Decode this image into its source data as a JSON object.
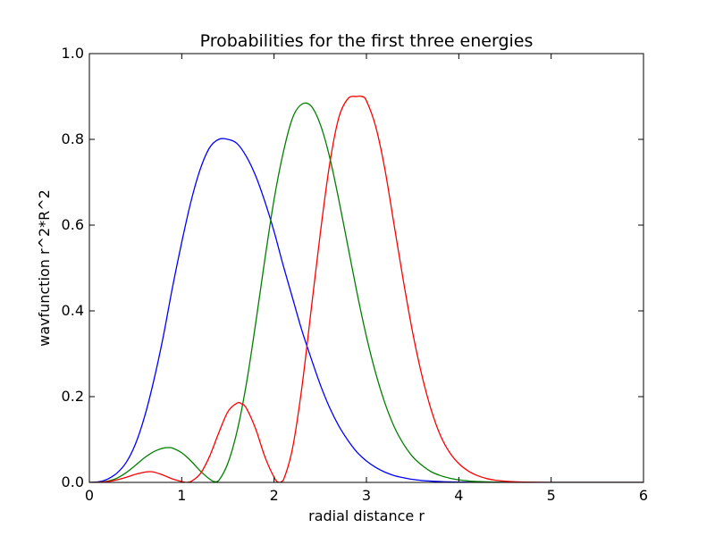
{
  "chart_data": {
    "type": "line",
    "title": "Probabilities for the first three energies",
    "xlabel": "radial distance r",
    "ylabel": "wavfunction r^2*R^2",
    "xlim": [
      0,
      6
    ],
    "ylim": [
      0,
      1.0
    ],
    "grid": false,
    "legend": "none",
    "x_ticks": [
      {
        "value": 0,
        "label": "0"
      },
      {
        "value": 1,
        "label": "1"
      },
      {
        "value": 2,
        "label": "2"
      },
      {
        "value": 3,
        "label": "3"
      },
      {
        "value": 4,
        "label": "4"
      },
      {
        "value": 5,
        "label": "5"
      },
      {
        "value": 6,
        "label": "6"
      }
    ],
    "y_ticks": [
      {
        "value": 0.0,
        "label": "0.0"
      },
      {
        "value": 0.2,
        "label": "0.2"
      },
      {
        "value": 0.4,
        "label": "0.4"
      },
      {
        "value": 0.6,
        "label": "0.6"
      },
      {
        "value": 0.8,
        "label": "0.8"
      },
      {
        "value": 1.0,
        "label": "1.0"
      }
    ],
    "series": [
      {
        "color": "#0000ff",
        "x": [
          0.0,
          0.1,
          0.2,
          0.3,
          0.4,
          0.5,
          0.6,
          0.7,
          0.8,
          0.9,
          1.0,
          1.1,
          1.2,
          1.3,
          1.4,
          1.5,
          1.6,
          1.7,
          1.8,
          1.9,
          2.0,
          2.1,
          2.2,
          2.3,
          2.4,
          2.5,
          2.6,
          2.7,
          2.8,
          2.9,
          3.0,
          3.1,
          3.2,
          3.3,
          3.4,
          3.5,
          3.6,
          3.7,
          3.8,
          3.9,
          4.0,
          4.1,
          4.2,
          4.4,
          4.6,
          4.8,
          5.0,
          5.5,
          6.0
        ],
        "y": [
          0.0,
          0.0015,
          0.008,
          0.022,
          0.047,
          0.09,
          0.155,
          0.24,
          0.34,
          0.455,
          0.56,
          0.655,
          0.73,
          0.78,
          0.8,
          0.8,
          0.79,
          0.76,
          0.715,
          0.655,
          0.585,
          0.505,
          0.43,
          0.355,
          0.29,
          0.228,
          0.175,
          0.132,
          0.098,
          0.07,
          0.05,
          0.035,
          0.024,
          0.016,
          0.011,
          0.007,
          0.0045,
          0.003,
          0.002,
          0.0012,
          0.0008,
          0.0005,
          0.0003,
          0.0001,
          0.0,
          0.0,
          0.0,
          0.0,
          0.0
        ]
      },
      {
        "color": "#008000",
        "x": [
          0.0,
          0.1,
          0.2,
          0.3,
          0.4,
          0.5,
          0.6,
          0.7,
          0.8,
          0.85,
          0.9,
          1.0,
          1.1,
          1.2,
          1.3,
          1.35,
          1.4,
          1.5,
          1.6,
          1.7,
          1.8,
          1.9,
          2.0,
          2.1,
          2.2,
          2.3,
          2.4,
          2.5,
          2.6,
          2.7,
          2.8,
          2.9,
          3.0,
          3.1,
          3.2,
          3.3,
          3.4,
          3.5,
          3.6,
          3.7,
          3.8,
          3.9,
          4.0,
          4.1,
          4.2,
          4.4,
          4.6,
          5.0,
          6.0
        ],
        "y": [
          0.0,
          0.0005,
          0.003,
          0.01,
          0.023,
          0.04,
          0.058,
          0.072,
          0.08,
          0.081,
          0.08,
          0.069,
          0.05,
          0.027,
          0.008,
          0.002,
          0.004,
          0.045,
          0.12,
          0.23,
          0.37,
          0.52,
          0.66,
          0.77,
          0.85,
          0.882,
          0.878,
          0.835,
          0.76,
          0.66,
          0.55,
          0.44,
          0.34,
          0.255,
          0.185,
          0.13,
          0.09,
          0.06,
          0.04,
          0.025,
          0.016,
          0.01,
          0.006,
          0.0035,
          0.002,
          0.0006,
          0.0002,
          0.0,
          0.0
        ]
      },
      {
        "color": "#ff0000",
        "x": [
          0.0,
          0.1,
          0.2,
          0.3,
          0.4,
          0.5,
          0.6,
          0.65,
          0.7,
          0.8,
          0.9,
          1.0,
          1.05,
          1.1,
          1.2,
          1.3,
          1.4,
          1.5,
          1.6,
          1.65,
          1.7,
          1.8,
          1.9,
          2.0,
          2.05,
          2.1,
          2.2,
          2.3,
          2.4,
          2.5,
          2.6,
          2.7,
          2.8,
          2.9,
          2.95,
          3.0,
          3.1,
          3.2,
          3.3,
          3.4,
          3.5,
          3.6,
          3.7,
          3.8,
          3.9,
          4.0,
          4.1,
          4.2,
          4.3,
          4.4,
          4.6,
          4.8,
          5.0,
          5.5,
          6.0
        ],
        "y": [
          0.0,
          0.0003,
          0.002,
          0.006,
          0.012,
          0.019,
          0.024,
          0.025,
          0.024,
          0.017,
          0.008,
          0.002,
          0.0,
          0.002,
          0.02,
          0.06,
          0.115,
          0.165,
          0.185,
          0.183,
          0.173,
          0.125,
          0.06,
          0.012,
          0.0,
          0.005,
          0.08,
          0.22,
          0.4,
          0.58,
          0.74,
          0.85,
          0.895,
          0.9,
          0.9,
          0.89,
          0.83,
          0.73,
          0.6,
          0.47,
          0.35,
          0.25,
          0.17,
          0.11,
          0.07,
          0.044,
          0.027,
          0.016,
          0.009,
          0.005,
          0.0015,
          0.0004,
          0.0,
          0.0,
          0.0
        ]
      }
    ]
  }
}
